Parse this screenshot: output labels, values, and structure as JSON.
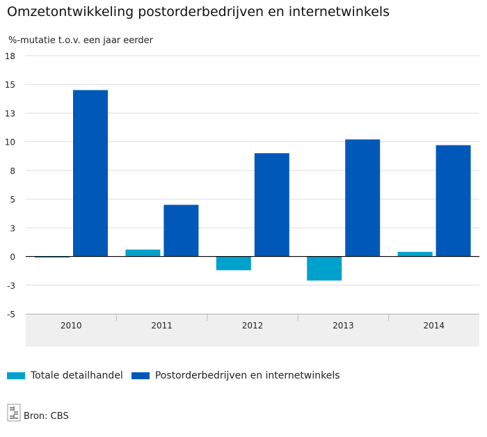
{
  "title": "Omzetontwikkeling postorderbedrijven en internetwinkels",
  "colors": {
    "series1": "#00a1cd",
    "series2": "#0058b8",
    "axis_band": "#efefef",
    "grid": "#dddddd",
    "zero_line": "#000000"
  },
  "legend": {
    "items": [
      "Totale detailhandel",
      "Postorderbedrijven en internetwinkels"
    ]
  },
  "source": {
    "label": "Bron: CBS",
    "logo_icon": "cbs-logo-icon"
  },
  "chart_data": {
    "type": "bar",
    "title": "Omzetontwikkeling postorderbedrijven en internetwinkels",
    "subtitle": "%-mutatie t.o.v. een jaar eerder",
    "categories": [
      "2010",
      "2011",
      "2012",
      "2013",
      "2014"
    ],
    "series": [
      {
        "name": "Totale detailhandel",
        "values": [
          -0.1,
          0.6,
          -1.2,
          -2.1,
          0.4
        ]
      },
      {
        "name": "Postorderbedrijven en internetwinkels",
        "values": [
          14.5,
          4.5,
          9.0,
          10.2,
          9.7
        ]
      }
    ],
    "ylim": [
      -5,
      17.5
    ],
    "y_ticks": [
      17.5,
      15,
      12.5,
      10,
      7.5,
      5,
      2.5,
      0,
      -2.5,
      -5
    ],
    "y_tick_labels": [
      "18",
      "15",
      "13",
      "10",
      "8",
      "5",
      "3",
      "0",
      "-3",
      "-5"
    ],
    "grid": true,
    "legend_position": "bottom-left"
  }
}
